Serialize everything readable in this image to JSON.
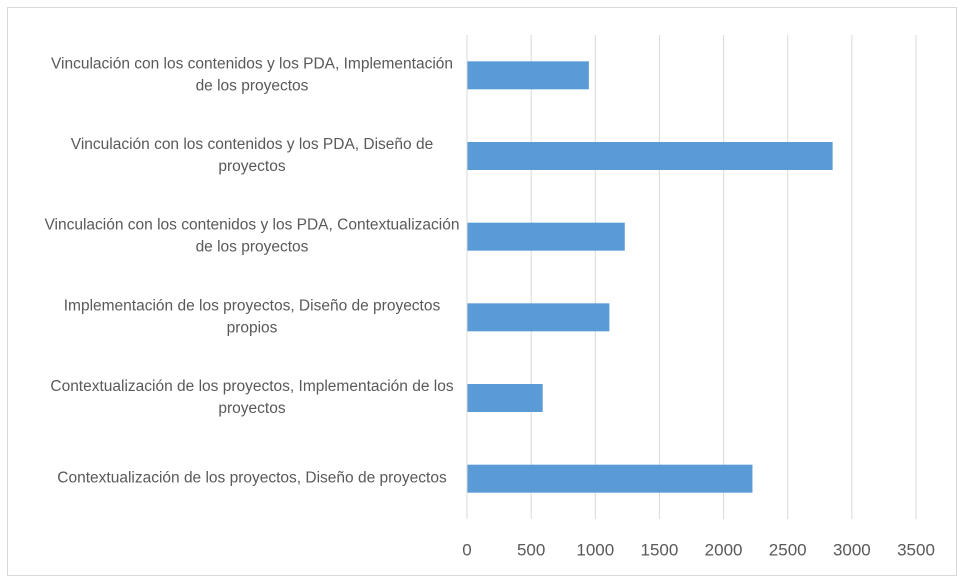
{
  "chart_data": {
    "type": "barh",
    "categories": [
      "Vinculación con los contenidos y los PDA, Implementación de los proyectos",
      "Vinculación con los contenidos y los PDA, Diseño de proyectos",
      "Vinculación con los contenidos y los PDA, Contextualización de los proyectos",
      "Implementación de los proyectos, Diseño de proyectos propios",
      "Contextualización de los proyectos, Implementación de los proyectos",
      "Contextualización de los proyectos, Diseño de proyectos"
    ],
    "values": [
      950,
      2850,
      1230,
      1110,
      590,
      2225
    ],
    "color": "#5b9bd5",
    "xlim": [
      0,
      3500
    ],
    "xticks": [
      0,
      500,
      1000,
      1500,
      2000,
      2500,
      3000,
      3500
    ],
    "grid": true
  }
}
